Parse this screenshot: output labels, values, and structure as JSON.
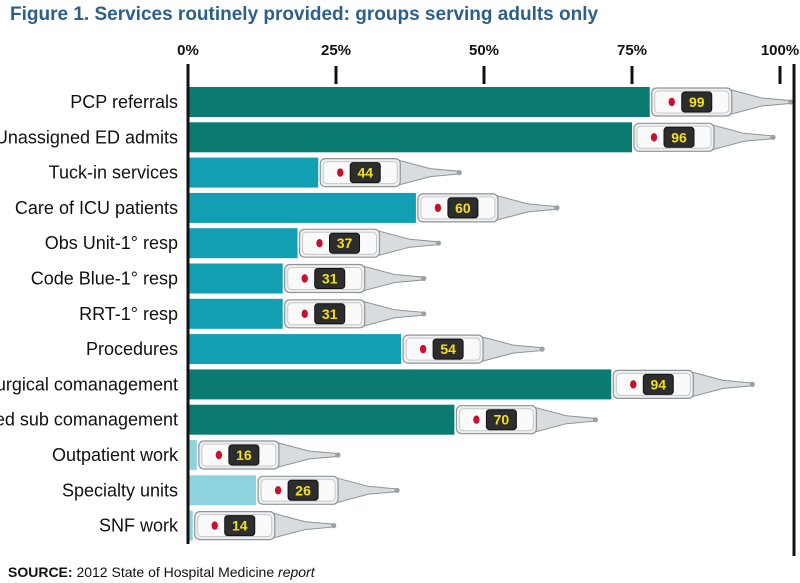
{
  "chart_data": {
    "type": "bar",
    "orientation": "horizontal",
    "title": "Figure 1. Services routinely provided: groups serving adults only",
    "categories": [
      "PCP referrals",
      "Unassigned ED admits",
      "Tuck-in services",
      "Care of ICU patients",
      "Obs Unit-1° resp",
      "Code Blue-1° resp",
      "RRT-1° resp",
      "Procedures",
      "Surgical comanagement",
      "Med sub comanagement",
      "Outpatient work",
      "Specialty units",
      "SNF work"
    ],
    "values": [
      99,
      96,
      44,
      60,
      37,
      31,
      31,
      54,
      94,
      70,
      16,
      26,
      14
    ],
    "bar_values": [
      78,
      75,
      22,
      38.5,
      18.5,
      16,
      16,
      36,
      71.5,
      45,
      1.5,
      11.5,
      0.8
    ],
    "bar_colors": [
      "#0b7b72",
      "#0b7b72",
      "#139fb3",
      "#139fb3",
      "#139fb3",
      "#139fb3",
      "#139fb3",
      "#139fb3",
      "#0b7b72",
      "#0b7b72",
      "#8fd3de",
      "#8fd3de",
      "#8fd3de"
    ],
    "xlim": [
      0,
      100
    ],
    "xticks": [
      "0%",
      "25%",
      "50%",
      "75%",
      "100%"
    ],
    "xlabel": "",
    "ylabel": "",
    "grid": false
  },
  "source": {
    "label": "SOURCE:",
    "text": "2012 State of Hospital Medicine",
    "italic": "report"
  }
}
